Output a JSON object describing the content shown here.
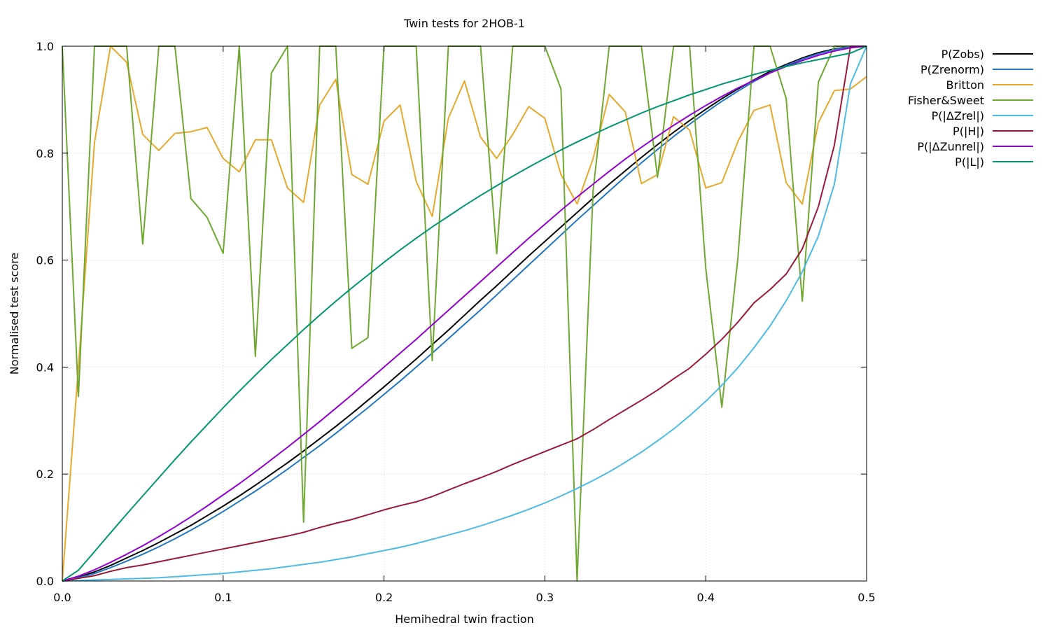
{
  "chart_data": {
    "type": "line",
    "title": "Twin tests for 2HOB-1",
    "xlabel": "Hemihedral twin fraction",
    "ylabel": "Normalised test score",
    "xlim": [
      0,
      0.5
    ],
    "ylim": [
      0,
      1
    ],
    "xticks": [
      "0.0",
      "0.1",
      "0.2",
      "0.3",
      "0.4",
      "0.5"
    ],
    "yticks": [
      "0.0",
      "0.2",
      "0.4",
      "0.6",
      "0.8",
      "1.0"
    ],
    "grid": true,
    "legend_position": "right",
    "x": [
      0,
      0.01,
      0.02,
      0.03,
      0.04,
      0.05,
      0.06,
      0.07,
      0.08,
      0.09,
      0.1,
      0.11,
      0.12,
      0.13,
      0.14,
      0.15,
      0.16,
      0.17,
      0.18,
      0.19,
      0.2,
      0.21,
      0.22,
      0.23,
      0.24,
      0.25,
      0.26,
      0.27,
      0.28,
      0.29,
      0.3,
      0.31,
      0.32,
      0.33,
      0.34,
      0.35,
      0.36,
      0.37,
      0.38,
      0.39,
      0.4,
      0.41,
      0.42,
      0.43,
      0.44,
      0.45,
      0.46,
      0.47,
      0.48,
      0.49,
      0.5
    ],
    "series": [
      {
        "name": "P(Zobs)",
        "color": "#000000",
        "values": [
          0,
          0.007,
          0.017,
          0.029,
          0.043,
          0.057,
          0.072,
          0.088,
          0.104,
          0.122,
          0.14,
          0.159,
          0.179,
          0.2,
          0.221,
          0.243,
          0.266,
          0.289,
          0.313,
          0.338,
          0.363,
          0.389,
          0.415,
          0.442,
          0.469,
          0.497,
          0.525,
          0.552,
          0.58,
          0.608,
          0.635,
          0.662,
          0.689,
          0.716,
          0.742,
          0.767,
          0.792,
          0.816,
          0.839,
          0.861,
          0.882,
          0.902,
          0.92,
          0.937,
          0.953,
          0.966,
          0.978,
          0.988,
          0.995,
          0.999,
          1.0
        ]
      },
      {
        "name": "P(Zrenorm)",
        "color": "#1f77c4",
        "values": [
          0,
          0.006,
          0.014,
          0.025,
          0.037,
          0.05,
          0.064,
          0.079,
          0.095,
          0.112,
          0.13,
          0.149,
          0.168,
          0.188,
          0.209,
          0.231,
          0.253,
          0.276,
          0.3,
          0.324,
          0.349,
          0.374,
          0.4,
          0.426,
          0.453,
          0.48,
          0.507,
          0.535,
          0.563,
          0.591,
          0.619,
          0.647,
          0.675,
          0.702,
          0.729,
          0.756,
          0.782,
          0.807,
          0.831,
          0.854,
          0.876,
          0.897,
          0.916,
          0.934,
          0.95,
          0.964,
          0.976,
          0.986,
          0.994,
          0.999,
          1.0
        ]
      },
      {
        "name": "Britton",
        "color": "#e6a92d",
        "values": [
          0,
          0.4,
          0.82,
          1.0,
          0.97,
          0.835,
          0.805,
          0.837,
          0.84,
          0.848,
          0.79,
          0.765,
          0.825,
          0.825,
          0.735,
          0.708,
          0.89,
          0.938,
          0.76,
          0.742,
          0.86,
          0.89,
          0.747,
          0.682,
          0.865,
          0.935,
          0.83,
          0.79,
          0.835,
          0.887,
          0.865,
          0.76,
          0.705,
          0.79,
          0.91,
          0.877,
          0.743,
          0.76,
          0.868,
          0.843,
          0.735,
          0.745,
          0.822,
          0.88,
          0.89,
          0.745,
          0.705,
          0.857,
          0.917,
          0.92,
          0.943
        ]
      },
      {
        "name": "Fisher&Sweet",
        "color": "#6ea830",
        "values": [
          1.0,
          0.345,
          1.0,
          1.0,
          1.0,
          0.63,
          1.0,
          1.0,
          0.715,
          0.68,
          0.613,
          1.0,
          0.42,
          0.95,
          1.0,
          0.11,
          1.0,
          1.0,
          0.435,
          0.455,
          1.0,
          1.0,
          1.0,
          0.412,
          1.0,
          1.0,
          1.0,
          0.612,
          1.0,
          1.0,
          1.0,
          0.92,
          0.0,
          0.73,
          1.0,
          1.0,
          1.0,
          0.755,
          1.0,
          1.0,
          0.585,
          0.325,
          0.605,
          1.0,
          1.0,
          0.902,
          0.523,
          0.933,
          1.0,
          1.0,
          1.0
        ]
      },
      {
        "name": "P(|ΔZrel|)",
        "color": "#4dbbe8",
        "values": [
          0,
          0.001,
          0.002,
          0.003,
          0.004,
          0.005,
          0.006,
          0.008,
          0.01,
          0.012,
          0.014,
          0.017,
          0.02,
          0.023,
          0.027,
          0.031,
          0.035,
          0.04,
          0.045,
          0.051,
          0.057,
          0.063,
          0.07,
          0.078,
          0.086,
          0.094,
          0.103,
          0.113,
          0.123,
          0.134,
          0.146,
          0.159,
          0.173,
          0.188,
          0.204,
          0.222,
          0.241,
          0.262,
          0.284,
          0.309,
          0.336,
          0.366,
          0.399,
          0.436,
          0.477,
          0.524,
          0.578,
          0.645,
          0.742,
          0.93,
          1.0
        ]
      },
      {
        "name": "P(|H|)",
        "color": "#9b1a35",
        "values": [
          0,
          0.005,
          0.01,
          0.018,
          0.025,
          0.03,
          0.036,
          0.042,
          0.048,
          0.054,
          0.06,
          0.066,
          0.072,
          0.078,
          0.084,
          0.091,
          0.1,
          0.108,
          0.115,
          0.124,
          0.133,
          0.141,
          0.148,
          0.158,
          0.17,
          0.182,
          0.193,
          0.205,
          0.218,
          0.23,
          0.242,
          0.254,
          0.266,
          0.283,
          0.302,
          0.32,
          0.338,
          0.357,
          0.378,
          0.398,
          0.424,
          0.452,
          0.484,
          0.52,
          0.545,
          0.574,
          0.621,
          0.7,
          0.815,
          1.0,
          1.0
        ]
      },
      {
        "name": "P(|ΔZunrel|)",
        "color": "#9400d3",
        "values": [
          0,
          0.009,
          0.021,
          0.035,
          0.05,
          0.066,
          0.083,
          0.101,
          0.12,
          0.14,
          0.161,
          0.182,
          0.204,
          0.227,
          0.25,
          0.274,
          0.298,
          0.323,
          0.348,
          0.374,
          0.4,
          0.426,
          0.452,
          0.479,
          0.506,
          0.533,
          0.56,
          0.587,
          0.614,
          0.641,
          0.667,
          0.693,
          0.718,
          0.742,
          0.766,
          0.789,
          0.811,
          0.832,
          0.852,
          0.871,
          0.889,
          0.906,
          0.922,
          0.936,
          0.95,
          0.962,
          0.973,
          0.983,
          0.991,
          0.997,
          1.0
        ]
      },
      {
        "name": "P(|L|)",
        "color": "#00966f",
        "values": [
          0,
          0.02,
          0.055,
          0.09,
          0.125,
          0.159,
          0.193,
          0.227,
          0.26,
          0.292,
          0.324,
          0.355,
          0.385,
          0.414,
          0.442,
          0.47,
          0.497,
          0.523,
          0.548,
          0.572,
          0.596,
          0.619,
          0.641,
          0.662,
          0.682,
          0.702,
          0.721,
          0.739,
          0.757,
          0.774,
          0.79,
          0.806,
          0.821,
          0.835,
          0.849,
          0.862,
          0.875,
          0.887,
          0.898,
          0.909,
          0.919,
          0.929,
          0.938,
          0.947,
          0.955,
          0.962,
          0.969,
          0.975,
          0.981,
          0.987,
          1.0
        ]
      }
    ]
  }
}
